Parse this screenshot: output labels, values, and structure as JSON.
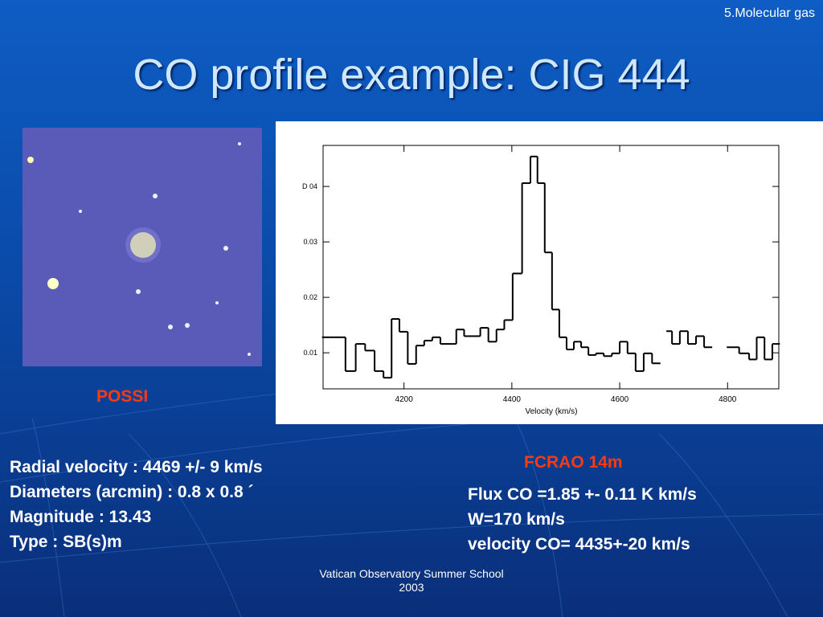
{
  "header": {
    "section": "5.Molecular gas",
    "title": "CO profile example: CIG 444"
  },
  "image": {
    "label": "POSSI"
  },
  "chart_data": {
    "type": "step",
    "label": "FCRAO 14m",
    "xlabel": "Velocity (km/s)",
    "color": "#000000",
    "x": [
      4059,
      4081,
      4102,
      4119,
      4137,
      4154,
      4170,
      4184,
      4199,
      4215,
      4230,
      4245,
      4260,
      4275,
      4290,
      4304,
      4319,
      4334,
      4349,
      4364,
      4379,
      4393,
      4410,
      4428,
      4441,
      4454,
      4468,
      4481,
      4495,
      4508,
      4522,
      4535,
      4549,
      4563,
      4578,
      4593,
      4607,
      4622,
      4637,
      4652,
      4668,
      4683,
      4690,
      4704,
      4719,
      4734,
      4749,
      4764,
      4780,
      4810,
      4833,
      4847,
      4861,
      4876,
      4890
    ],
    "values": [
      0.0128,
      0.0128,
      0.0067,
      0.0116,
      0.0104,
      0.0067,
      0.0055,
      0.0161,
      0.0138,
      0.008,
      0.0113,
      0.0122,
      0.0128,
      0.0116,
      0.0116,
      0.0142,
      0.013,
      0.013,
      0.0145,
      0.012,
      0.0142,
      0.0159,
      0.0243,
      0.0406,
      0.0454,
      0.0406,
      0.0281,
      0.0178,
      0.0128,
      0.0106,
      0.012,
      0.011,
      0.0096,
      0.0099,
      0.0094,
      0.0099,
      0.012,
      0.0099,
      0.0067,
      0.0099,
      0.0081,
      null,
      0.0139,
      0.0116,
      0.0139,
      0.0116,
      0.013,
      0.011,
      null,
      0.011,
      0.0099,
      0.0088,
      0.0128,
      0.0088,
      0.0116
    ],
    "xlim": [
      4050,
      4895
    ],
    "ylim": [
      0.0035,
      0.0474
    ],
    "xticks": [
      4200,
      4400,
      4600,
      4800
    ],
    "yticks": [
      {
        "value": 0.04,
        "label": "D 04"
      },
      0.03,
      0.02,
      0.01
    ]
  },
  "info_left": [
    "Radial velocity : 4469 +/- 9 km/s",
    "Diameters (arcmin) : 0.8 x 0.8 ´",
    "Magnitude : 13.43",
    "Type : SB(s)m"
  ],
  "info_right": [
    "Flux CO =1.85 +- 0.11 K km/s",
    "W=170 km/s",
    "velocity CO= 4435+-20 km/s"
  ],
  "footer": [
    "Vatican Observatory Summer School",
    "2003"
  ]
}
